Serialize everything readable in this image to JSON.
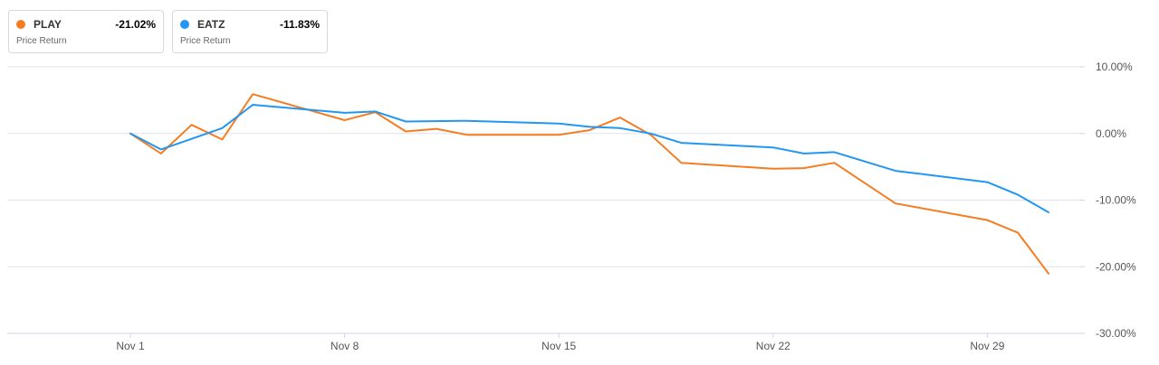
{
  "legend": [
    {
      "ticker": "PLAY",
      "return": "-21.02%",
      "subtitle": "Price Return",
      "color": "#f57c20"
    },
    {
      "ticker": "EATZ",
      "return": "-11.83%",
      "subtitle": "Price Return",
      "color": "#2196f3"
    }
  ],
  "chart_data": {
    "type": "line",
    "x_tick_labels": [
      "Nov 1",
      "Nov 8",
      "Nov 15",
      "Nov 22",
      "Nov 29"
    ],
    "y_tick_labels": [
      "10.00%",
      "0.00%",
      "-10.00%",
      "-20.00%",
      "-30.00%"
    ],
    "ylim": [
      -30,
      10
    ],
    "grid": true,
    "series": [
      {
        "name": "PLAY",
        "color": "#f57c20",
        "x": [
          "Nov 1",
          "Nov 2",
          "Nov 3",
          "Nov 4",
          "Nov 5",
          "Nov 8",
          "Nov 9",
          "Nov 10",
          "Nov 11",
          "Nov 12",
          "Nov 15",
          "Nov 16",
          "Nov 17",
          "Nov 18",
          "Nov 19",
          "Nov 22",
          "Nov 23",
          "Nov 24",
          "Nov 26",
          "Nov 29",
          "Nov 30",
          "Dec 1"
        ],
        "y": [
          0.0,
          -3.0,
          1.3,
          -0.9,
          5.9,
          2.0,
          3.2,
          0.3,
          0.7,
          -0.2,
          -0.2,
          0.5,
          2.4,
          -0.2,
          -4.4,
          -5.3,
          -5.2,
          -4.4,
          -10.5,
          -13.0,
          -14.9,
          -21.02
        ]
      },
      {
        "name": "EATZ",
        "color": "#2196f3",
        "x": [
          "Nov 1",
          "Nov 2",
          "Nov 3",
          "Nov 4",
          "Nov 5",
          "Nov 8",
          "Nov 9",
          "Nov 10",
          "Nov 12",
          "Nov 15",
          "Nov 16",
          "Nov 17",
          "Nov 18",
          "Nov 19",
          "Nov 22",
          "Nov 23",
          "Nov 24",
          "Nov 26",
          "Nov 29",
          "Nov 30",
          "Dec 1"
        ],
        "y": [
          0.0,
          -2.4,
          -0.8,
          0.8,
          4.3,
          3.1,
          3.3,
          1.8,
          1.9,
          1.5,
          1.0,
          0.8,
          0.0,
          -1.4,
          -2.1,
          -3.0,
          -2.8,
          -5.6,
          -7.3,
          -9.2,
          -11.83
        ]
      }
    ]
  }
}
